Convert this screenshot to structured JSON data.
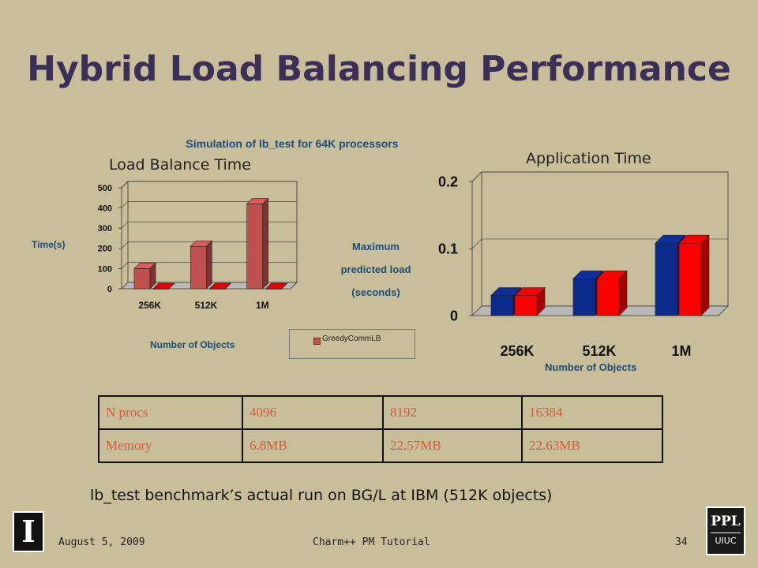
{
  "slide": {
    "title": "Hybrid Load Balancing Performance",
    "caption": "lb_test benchmark’s actual run on BG/L at IBM (512K objects)",
    "footer_date": "August 5, 2009",
    "footer_center": "Charm++ PM Tutorial",
    "page_number": "34",
    "logo_left_text": "I",
    "logo_right_text_top": "PPL",
    "logo_right_text_bottom": "UIUC"
  },
  "left_chart": {
    "overlay_label": "Load Balance Time",
    "ylabel": "Time(s)",
    "xlabel": "Number of Objects",
    "legend_label": "GreedyCommLB"
  },
  "center": {
    "chart_title": "Simulation of lb_test for 64K processors",
    "note_line1": "Maximum",
    "note_line2": "predicted load",
    "note_line3": "(seconds)"
  },
  "right_chart": {
    "overlay_label": "Application Time",
    "xlabel": "Number of Objects"
  },
  "table": {
    "rows": [
      [
        "N procs",
        "4096",
        "8192",
        "16384"
      ],
      [
        "Memory",
        "6.8MB",
        "22.57MB",
        "22.63MB"
      ]
    ]
  },
  "chart_data": [
    {
      "type": "bar",
      "categories": [
        "256K",
        "512K",
        "1M"
      ],
      "series": [
        {
          "name": "GreedyCommLB",
          "values": [
            100,
            210,
            420
          ],
          "color": "#c0504d"
        },
        {
          "values": [
            0,
            0,
            0
          ],
          "color": "#cc0000"
        }
      ],
      "ylim": [
        0,
        500
      ],
      "yticks": [
        0,
        100,
        200,
        300,
        400,
        500
      ],
      "ylabel": "Time(s)",
      "xlabel": "Number of Objects",
      "legend": "bottom-right",
      "grid": true
    },
    {
      "type": "bar",
      "categories": [
        "256K",
        "512K",
        "1M"
      ],
      "series": [
        {
          "values": [
            0.03,
            0.055,
            0.108
          ],
          "color": "#0a2a8c"
        },
        {
          "values": [
            0.03,
            0.055,
            0.108
          ],
          "color": "#ff0000"
        }
      ],
      "ylim": [
        0,
        0.2
      ],
      "yticks": [
        "0",
        "0.1",
        "0.2"
      ],
      "xlabel": "Number of Objects",
      "grid": true
    }
  ]
}
